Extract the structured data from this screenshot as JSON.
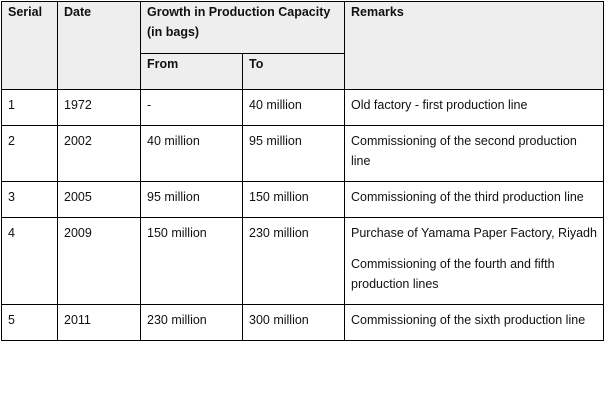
{
  "header": {
    "serial": "Serial",
    "date": "Date",
    "growth": "Growth in Production Capacity (in bags)",
    "remarks": "Remarks",
    "from": "From",
    "to": "To"
  },
  "rows": [
    {
      "serial": "1",
      "date": "1972",
      "from": "-",
      "to": "40 million",
      "remarks": [
        "Old factory - first production line"
      ]
    },
    {
      "serial": "2",
      "date": "2002",
      "from": "40 million",
      "to": "95 million",
      "remarks": [
        "Commissioning of the second production line"
      ]
    },
    {
      "serial": "3",
      "date": "2005",
      "from": "95 million",
      "to": "150 million",
      "remarks": [
        "Commissioning of the third production line"
      ]
    },
    {
      "serial": "4",
      "date": "2009",
      "from": "150 million",
      "to": "230 million",
      "remarks": [
        "Purchase of Yamama Paper Factory, Riyadh",
        "Commissioning of the fourth and fifth production lines"
      ]
    },
    {
      "serial": "5",
      "date": "2011",
      "from": "230 million",
      "to": "300 million",
      "remarks": [
        "Commissioning of the sixth production line"
      ]
    }
  ]
}
